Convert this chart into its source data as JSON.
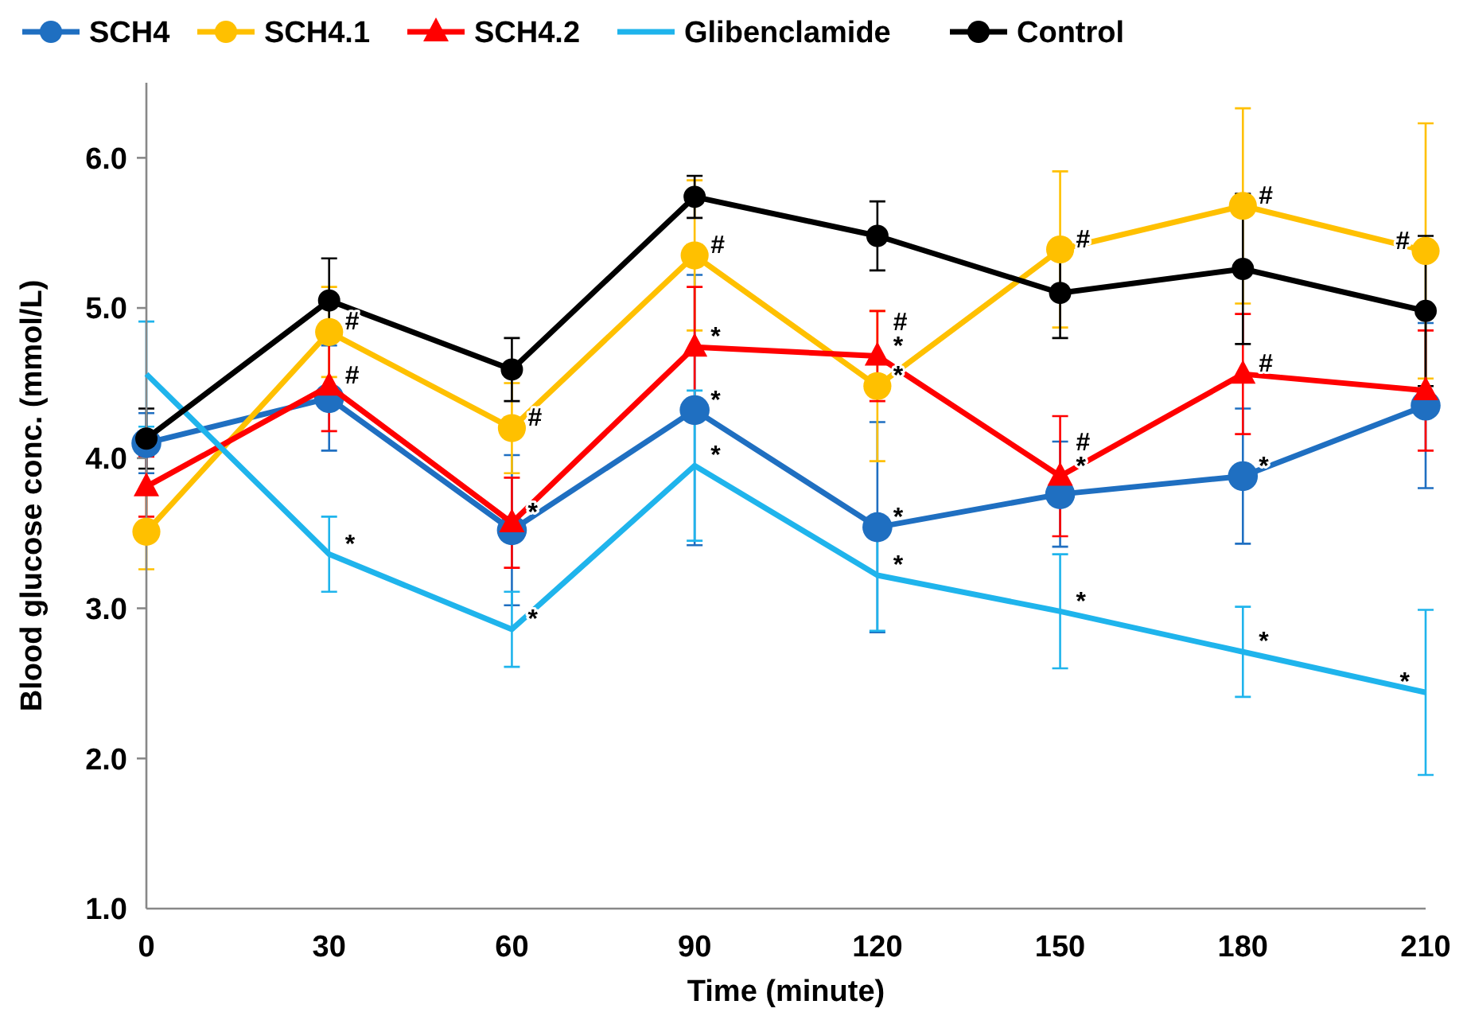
{
  "chart_data": {
    "type": "line",
    "xlabel": "Time (minute)",
    "ylabel": "Blood glucose conc. (mmol/L)",
    "x": [
      0,
      30,
      60,
      90,
      120,
      150,
      180,
      210
    ],
    "xlim": [
      0,
      210
    ],
    "xticks": [
      0,
      30,
      60,
      90,
      120,
      150,
      180,
      210
    ],
    "ylim": [
      1,
      6.5
    ],
    "yticks": [
      {
        "value": 1,
        "label": "1.0"
      },
      {
        "value": 2,
        "label": "2.0"
      },
      {
        "value": 3,
        "label": "3.0"
      },
      {
        "value": 4,
        "label": "4.0"
      },
      {
        "value": 5,
        "label": "5.0"
      },
      {
        "value": 6,
        "label": "6.0"
      }
    ],
    "legend": "top",
    "grid": false,
    "series": [
      {
        "name": "SCH4",
        "color": "#1f6fc1",
        "marker": "circle",
        "values": [
          4.1,
          4.4,
          3.52,
          4.32,
          3.54,
          3.76,
          3.88,
          4.35
        ],
        "errors": [
          0.2,
          0.35,
          0.5,
          0.9,
          0.7,
          0.35,
          0.45,
          0.55
        ]
      },
      {
        "name": "SCH4.1",
        "color": "#ffc000",
        "marker": "circle",
        "values": [
          3.51,
          4.84,
          4.2,
          5.35,
          4.48,
          5.39,
          5.68,
          5.38
        ],
        "errors": [
          0.25,
          0.3,
          0.3,
          0.5,
          0.5,
          0.52,
          0.65,
          0.85
        ]
      },
      {
        "name": "SCH4.2",
        "color": "#ff0000",
        "marker": "triangle",
        "values": [
          3.81,
          4.48,
          3.57,
          4.74,
          4.68,
          3.88,
          4.56,
          4.45
        ],
        "errors": [
          0.2,
          0.3,
          0.3,
          0.4,
          0.3,
          0.4,
          0.4,
          0.4
        ]
      },
      {
        "name": "Glibenclamide",
        "color": "#1fb4ec",
        "marker": "none",
        "values": [
          4.56,
          3.36,
          2.86,
          3.95,
          3.22,
          2.98,
          2.71,
          2.44
        ],
        "errors": [
          0.35,
          0.25,
          0.25,
          0.5,
          0.37,
          0.38,
          0.3,
          0.55
        ]
      },
      {
        "name": "Control",
        "color": "#000000",
        "marker": "circle",
        "values": [
          4.13,
          5.05,
          4.59,
          5.74,
          5.48,
          5.1,
          5.26,
          4.98
        ],
        "errors": [
          0.2,
          0.28,
          0.21,
          0.14,
          0.23,
          0.3,
          0.5,
          0.5
        ]
      }
    ],
    "annotations": [
      {
        "text": "#",
        "x": 30,
        "y": 4.84
      },
      {
        "text": "#",
        "x": 30,
        "y": 4.48
      },
      {
        "text": "*",
        "x": 30,
        "y": 3.36
      },
      {
        "text": "#",
        "x": 60,
        "y": 4.2
      },
      {
        "text": "*",
        "x": 60,
        "y": 3.57
      },
      {
        "text": "*",
        "x": 60,
        "y": 2.86
      },
      {
        "text": "#",
        "x": 90,
        "y": 5.35
      },
      {
        "text": "*",
        "x": 90,
        "y": 4.74
      },
      {
        "text": "*",
        "x": 90,
        "y": 4.32
      },
      {
        "text": "*",
        "x": 90,
        "y": 3.95
      },
      {
        "text": "*",
        "x": 120,
        "y": 4.68
      },
      {
        "text": "#",
        "x": 120,
        "y": 4.68
      },
      {
        "text": "*",
        "x": 120,
        "y": 4.48
      },
      {
        "text": "*",
        "x": 120,
        "y": 3.54
      },
      {
        "text": "*",
        "x": 120,
        "y": 3.22
      },
      {
        "text": "#",
        "x": 150,
        "y": 5.39
      },
      {
        "text": "*",
        "x": 150,
        "y": 3.88
      },
      {
        "text": "#",
        "x": 150,
        "y": 3.88
      },
      {
        "text": "*",
        "x": 150,
        "y": 2.98
      },
      {
        "text": "#",
        "x": 180,
        "y": 5.68
      },
      {
        "text": "#",
        "x": 180,
        "y": 4.56
      },
      {
        "text": "*",
        "x": 180,
        "y": 3.88
      },
      {
        "text": "*",
        "x": 180,
        "y": 2.71
      },
      {
        "text": "#",
        "x": 210,
        "y": 5.38
      },
      {
        "text": "*",
        "x": 210,
        "y": 2.44
      }
    ]
  }
}
